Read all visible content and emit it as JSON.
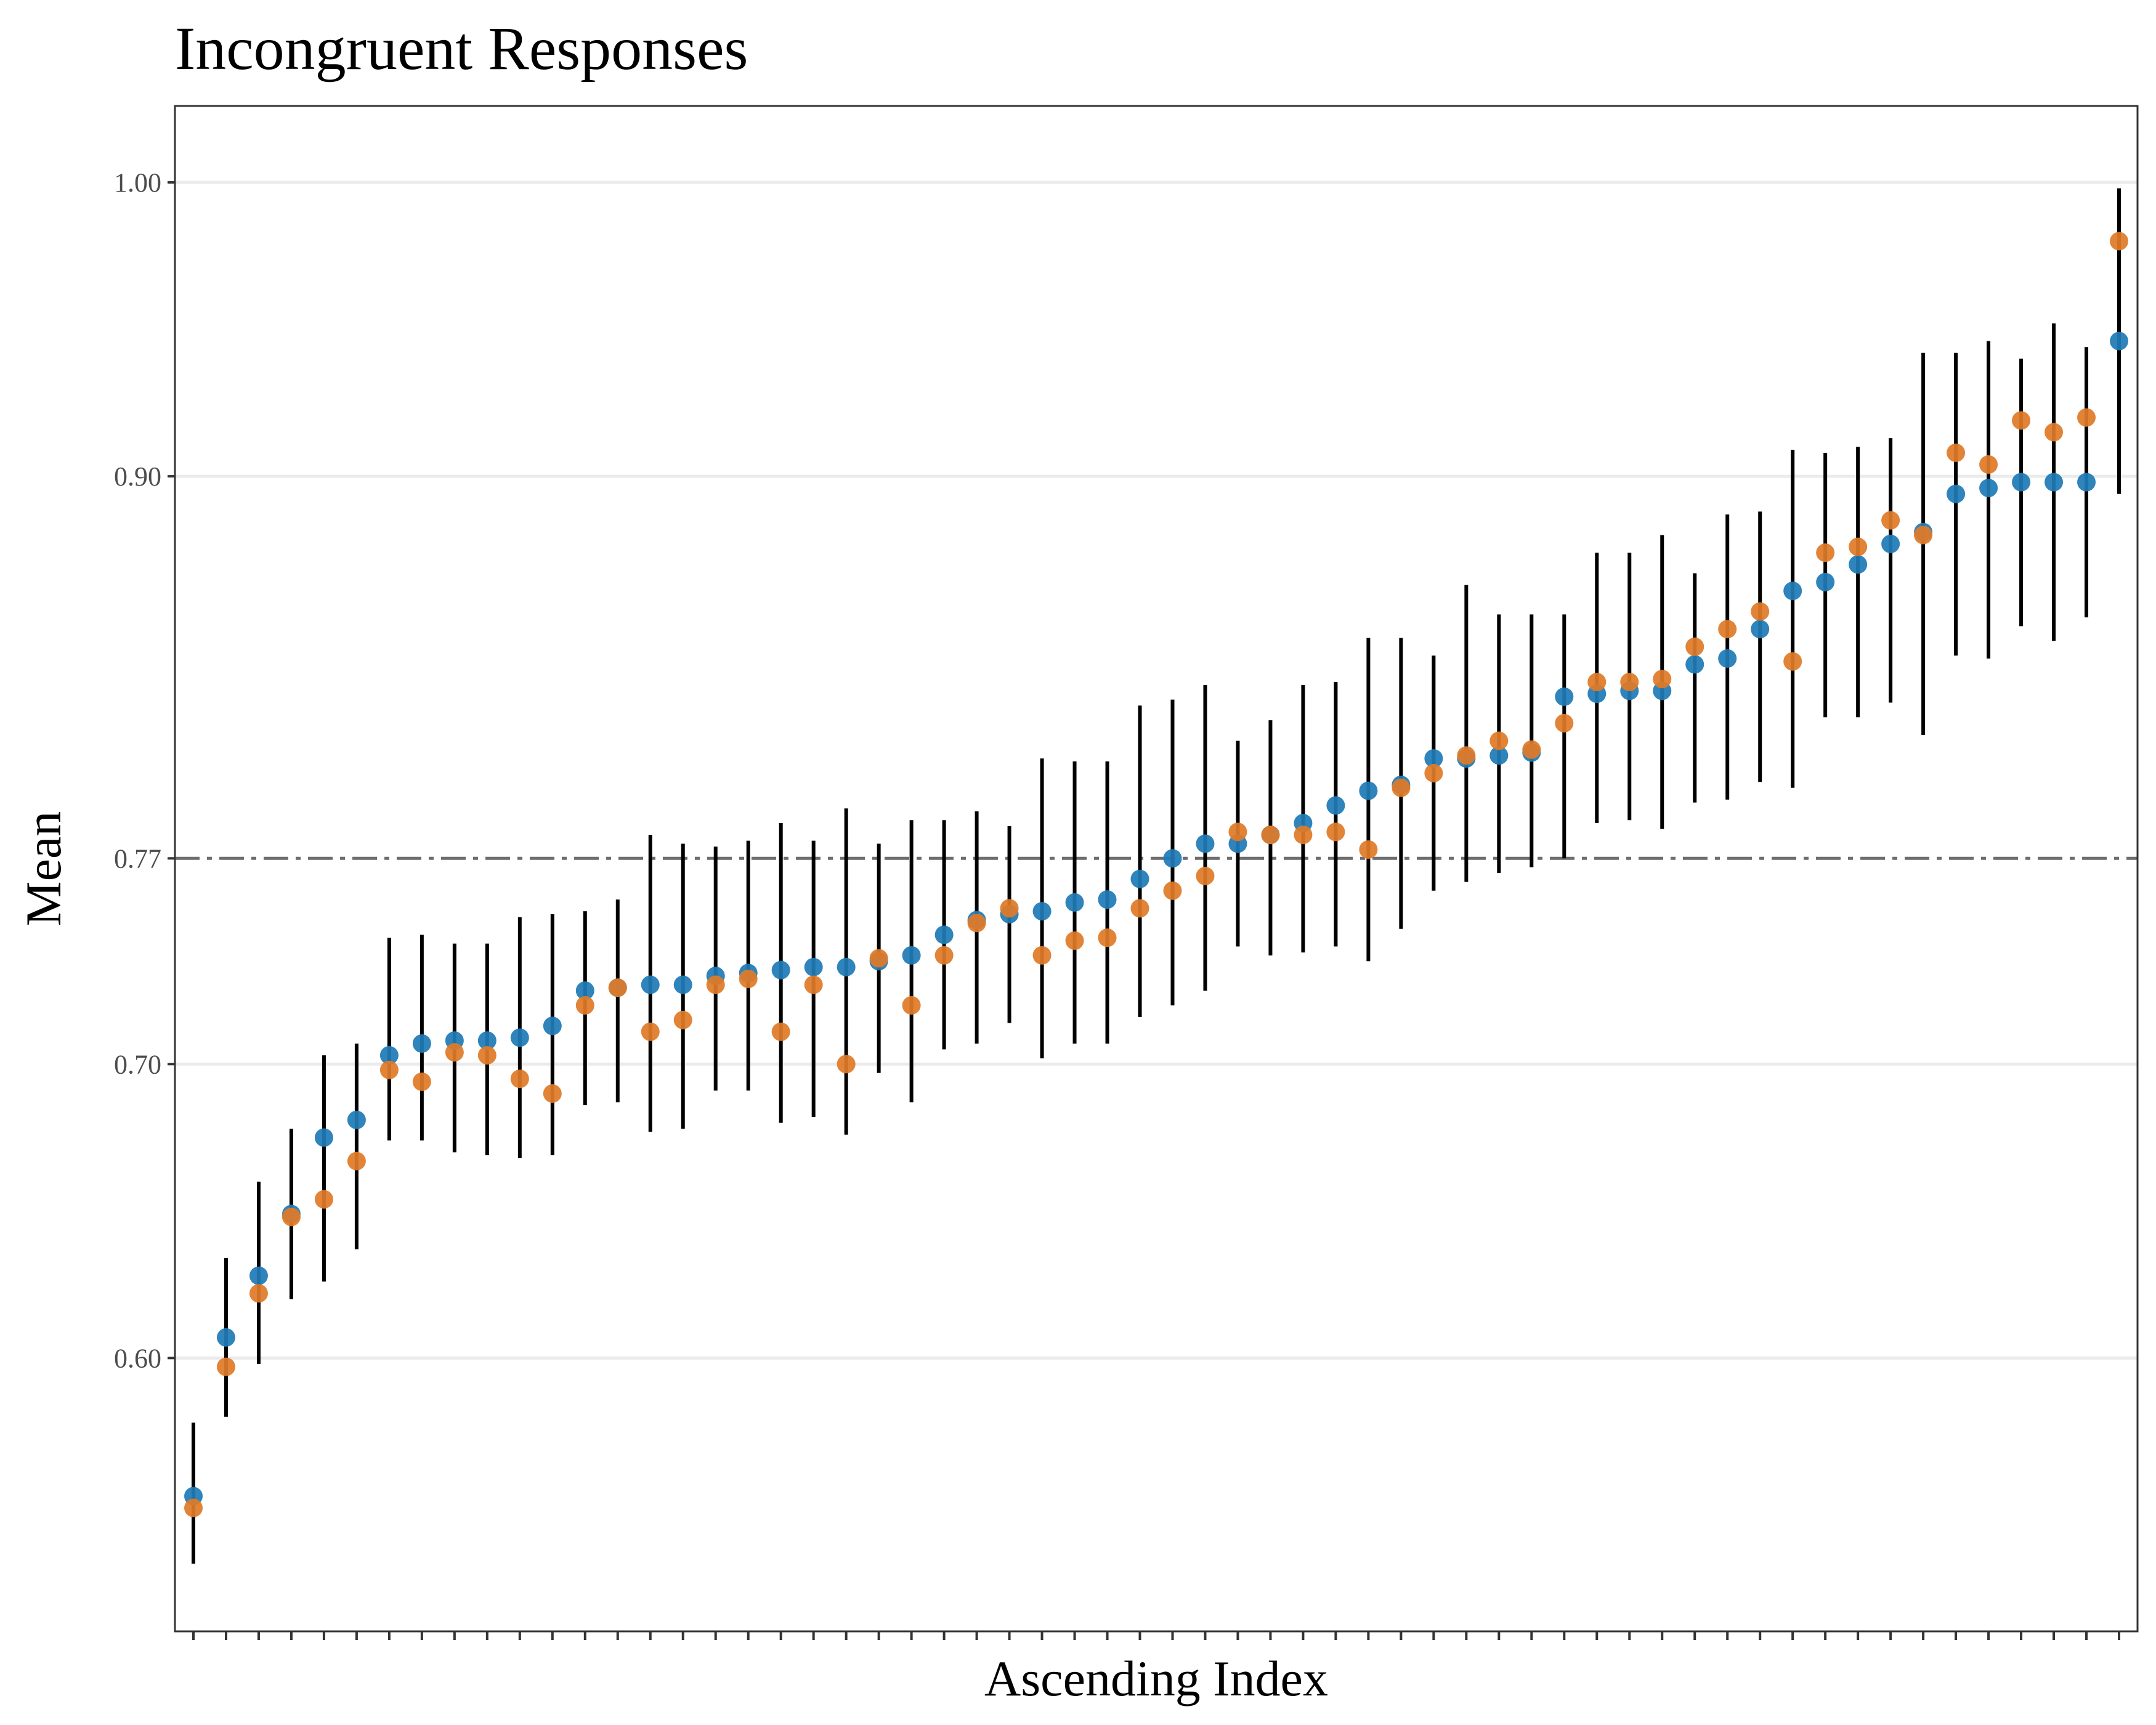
{
  "chart_data": {
    "type": "scatter",
    "title": "Incongruent Responses",
    "xlabel": "Ascending Index",
    "ylabel": "Mean",
    "ylim": [
      0.507,
      1.026
    ],
    "yticks": [
      0.6,
      0.7,
      0.77,
      0.9,
      1.0
    ],
    "ytick_labels": [
      "0.60",
      "0.70",
      "0.77",
      "0.90",
      "1.00"
    ],
    "reference_line": {
      "y": 0.77,
      "style": "dot-dash",
      "color": "#6e6e6e"
    },
    "grid": true,
    "legend": "none",
    "x": [
      1,
      2,
      3,
      4,
      5,
      6,
      7,
      8,
      9,
      10,
      11,
      12,
      13,
      14,
      15,
      16,
      17,
      18,
      19,
      20,
      21,
      22,
      23,
      24,
      25,
      26,
      27,
      28,
      29,
      30,
      31,
      32,
      33,
      34,
      35,
      36,
      37,
      38,
      39,
      40,
      41,
      42,
      43,
      44,
      45,
      46,
      47,
      48,
      49,
      50,
      51,
      52,
      53,
      54,
      55,
      56,
      57,
      58,
      59,
      60
    ],
    "series": [
      {
        "color": "#1f7bb6",
        "values": [
          0.553,
          0.607,
          0.628,
          0.649,
          0.675,
          0.681,
          0.703,
          0.707,
          0.708,
          0.708,
          0.709,
          0.713,
          0.725,
          0.726,
          0.727,
          0.727,
          0.73,
          0.731,
          0.732,
          0.733,
          0.733,
          0.735,
          0.737,
          0.744,
          0.749,
          0.751,
          0.752,
          0.755,
          0.756,
          0.763,
          0.77,
          0.775,
          0.775,
          0.778,
          0.782,
          0.788,
          0.793,
          0.795,
          0.804,
          0.804,
          0.805,
          0.806,
          0.825,
          0.826,
          0.827,
          0.827,
          0.836,
          0.838,
          0.848,
          0.861,
          0.864,
          0.87,
          0.877,
          0.881,
          0.894,
          0.896,
          0.898,
          0.898,
          0.898,
          0.946
        ]
      },
      {
        "color": "#e07b28",
        "values": [
          0.549,
          0.597,
          0.622,
          0.648,
          0.654,
          0.667,
          0.698,
          0.694,
          0.704,
          0.703,
          0.695,
          0.69,
          0.72,
          0.726,
          0.711,
          0.715,
          0.727,
          0.729,
          0.711,
          0.727,
          0.7,
          0.736,
          0.72,
          0.737,
          0.748,
          0.753,
          0.737,
          0.742,
          0.743,
          0.753,
          0.759,
          0.764,
          0.779,
          0.778,
          0.778,
          0.779,
          0.773,
          0.794,
          0.799,
          0.805,
          0.81,
          0.807,
          0.816,
          0.83,
          0.83,
          0.831,
          0.842,
          0.848,
          0.854,
          0.837,
          0.874,
          0.876,
          0.885,
          0.88,
          0.908,
          0.904,
          0.919,
          0.915,
          0.92,
          0.98
        ]
      }
    ],
    "error_bars": {
      "low": [
        0.53,
        0.58,
        0.598,
        0.62,
        0.626,
        0.637,
        0.674,
        0.674,
        0.67,
        0.669,
        0.668,
        0.669,
        0.686,
        0.687,
        0.677,
        0.678,
        0.691,
        0.691,
        0.68,
        0.682,
        0.676,
        0.697,
        0.687,
        0.705,
        0.707,
        0.714,
        0.702,
        0.707,
        0.707,
        0.716,
        0.72,
        0.725,
        0.74,
        0.737,
        0.738,
        0.74,
        0.735,
        0.746,
        0.759,
        0.762,
        0.765,
        0.767,
        0.77,
        0.782,
        0.783,
        0.78,
        0.789,
        0.79,
        0.796,
        0.794,
        0.818,
        0.818,
        0.823,
        0.812,
        0.839,
        0.838,
        0.849,
        0.844,
        0.852,
        0.894
      ],
      "high": [
        0.578,
        0.634,
        0.66,
        0.678,
        0.703,
        0.707,
        0.743,
        0.744,
        0.741,
        0.741,
        0.75,
        0.751,
        0.752,
        0.756,
        0.778,
        0.775,
        0.774,
        0.776,
        0.782,
        0.776,
        0.787,
        0.775,
        0.783,
        0.783,
        0.786,
        0.781,
        0.804,
        0.803,
        0.803,
        0.822,
        0.824,
        0.829,
        0.81,
        0.817,
        0.829,
        0.83,
        0.845,
        0.845,
        0.839,
        0.863,
        0.853,
        0.853,
        0.853,
        0.874,
        0.874,
        0.88,
        0.867,
        0.887,
        0.888,
        0.909,
        0.908,
        0.91,
        0.913,
        0.942,
        0.942,
        0.946,
        0.94,
        0.952,
        0.944,
        0.998
      ]
    }
  }
}
